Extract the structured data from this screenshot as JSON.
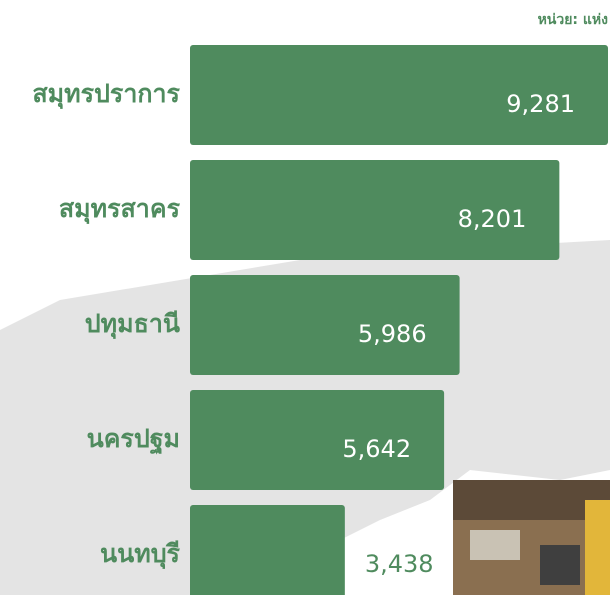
{
  "chart_data": {
    "type": "bar",
    "orientation": "horizontal",
    "unit_label": "หน่วย: แห่ง",
    "categories": [
      "สมุทรปราการ",
      "สมุทรสาคร",
      "ปทุมธานี",
      "นครปฐม",
      "นนทบุรี"
    ],
    "values": [
      9281,
      8201,
      5986,
      5642,
      3438
    ],
    "value_labels": [
      "9,281",
      "8,201",
      "5,986",
      "5,642",
      "3,438"
    ],
    "color": "#4f8b5e"
  }
}
